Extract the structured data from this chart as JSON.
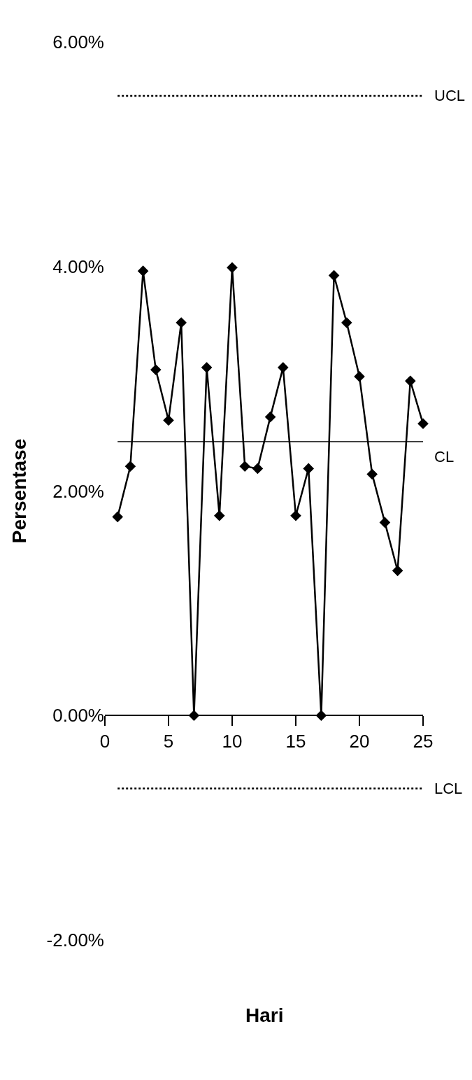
{
  "chart_data": {
    "type": "line",
    "xlabel": "Hari",
    "ylabel": "Persentase",
    "x": [
      1,
      2,
      3,
      4,
      5,
      6,
      7,
      8,
      9,
      10,
      11,
      12,
      13,
      14,
      15,
      16,
      17,
      18,
      19,
      20,
      21,
      22,
      23,
      24,
      25
    ],
    "series": [
      {
        "color": "#000000",
        "values": [
          1.77,
          2.22,
          3.96,
          3.08,
          2.63,
          3.5,
          0,
          3.1,
          1.78,
          3.99,
          2.22,
          2.2,
          2.66,
          3.1,
          1.78,
          2.2,
          0,
          3.92,
          3.5,
          3.02,
          2.15,
          1.72,
          1.29,
          2.98,
          2.6
        ]
      }
    ],
    "marker": "diamond",
    "line_style": "solid",
    "xlim": [
      0,
      25
    ],
    "xticks": [
      0,
      5,
      10,
      15,
      20,
      25
    ],
    "ylim": [
      -2,
      6
    ],
    "yticks": [
      {
        "value": -2,
        "label": "-2.00%"
      },
      {
        "value": 0,
        "label": "0.00%"
      },
      {
        "value": 2,
        "label": "2.00%"
      },
      {
        "value": 4,
        "label": "4.00%"
      },
      {
        "value": 6,
        "label": "6.00%"
      }
    ],
    "ref_lines": [
      {
        "axis": "y",
        "value": 5.52,
        "label": "UCL",
        "line_style": "dotted",
        "color": "#000000"
      },
      {
        "axis": "y",
        "value": 2.44,
        "label": "CL",
        "line_style": "solid",
        "color": "#000000"
      },
      {
        "axis": "y",
        "value": -0.65,
        "label": "LCL",
        "line_style": "dotted",
        "color": "#000000"
      }
    ]
  }
}
